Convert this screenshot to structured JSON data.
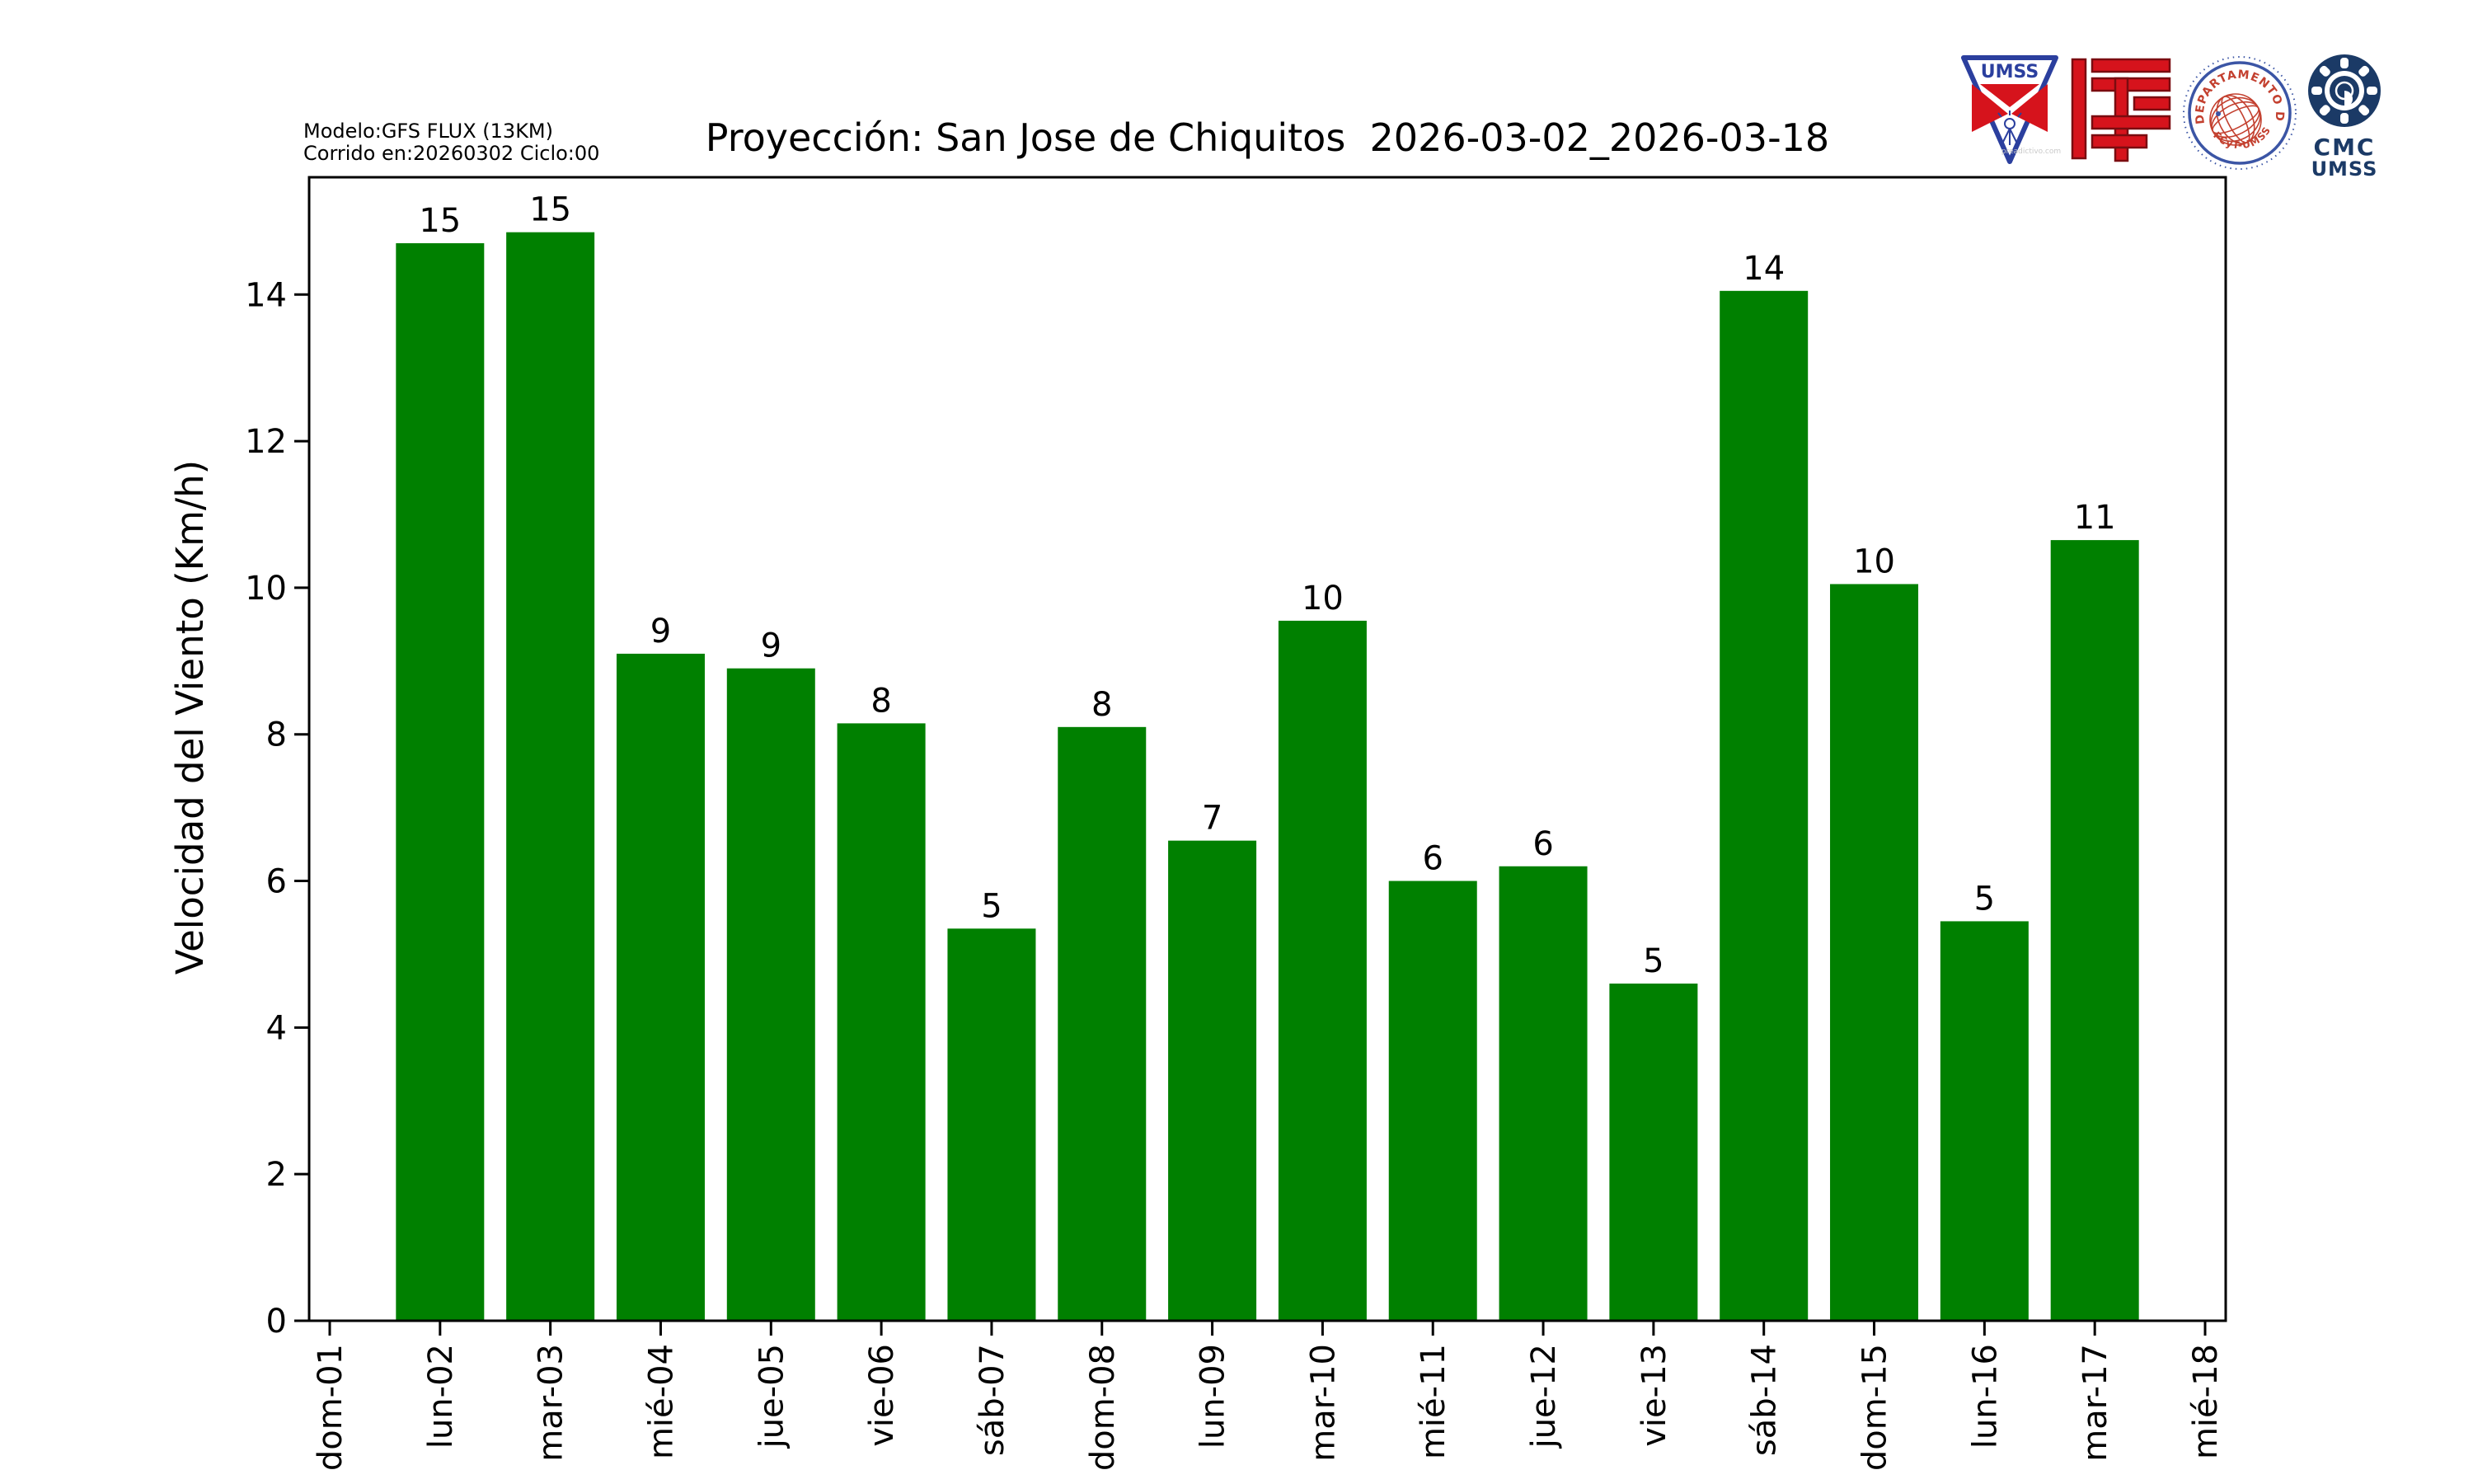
{
  "header": {
    "model_line1": "Modelo:GFS FLUX (13KM)",
    "model_line2": "Corrido en:20260302 Ciclo:00",
    "title": "Proyección: San Jose de Chiquitos  2026-03-02_2026-03-18"
  },
  "logos": {
    "umss": {
      "label": "UMSS",
      "watermark": "preadictivo.com"
    },
    "fisica": {
      "arc_text": "DEPARTAMENTO DE FÍSICA",
      "bottom_text": "FCyT-UMSS"
    },
    "cmc": {
      "line1": "CMC",
      "line2": "UMSS"
    }
  },
  "chart_data": {
    "type": "bar",
    "title": "Proyección: San Jose de Chiquitos  2026-03-02_2026-03-18",
    "xlabel": "",
    "ylabel": "Velocidad del Viento (Km/h)",
    "categories": [
      "dom-01",
      "lun-02",
      "mar-03",
      "mié-04",
      "jue-05",
      "vie-06",
      "sáb-07",
      "dom-08",
      "lun-09",
      "mar-10",
      "mié-11",
      "jue-12",
      "vie-13",
      "sáb-14",
      "dom-15",
      "lun-16",
      "mar-17",
      "mié-18"
    ],
    "values": [
      0,
      14.7,
      14.85,
      9.1,
      8.9,
      8.15,
      5.35,
      8.1,
      6.55,
      9.55,
      6.0,
      6.2,
      4.6,
      14.05,
      10.05,
      5.45,
      10.65,
      0
    ],
    "bar_labels": [
      "",
      "15",
      "15",
      "9",
      "9",
      "8",
      "5",
      "8",
      "7",
      "10",
      "6",
      "6",
      "5",
      "14",
      "10",
      "5",
      "11",
      ""
    ],
    "yticks": [
      0,
      2,
      4,
      6,
      8,
      10,
      12,
      14
    ],
    "ylim": [
      0,
      15.6
    ],
    "bar_color": "#008000",
    "text_color": "#000000",
    "grid": false,
    "legend": null
  }
}
